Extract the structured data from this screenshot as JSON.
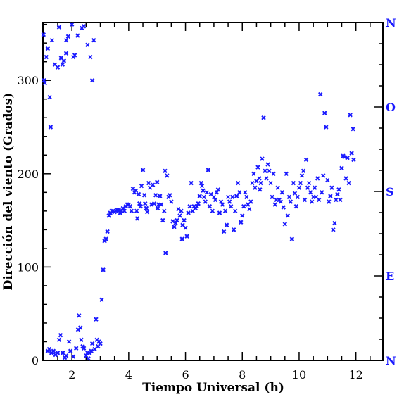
{
  "chart_data": {
    "type": "scatter",
    "xlabel": "Tiempo Universal (h)",
    "ylabel": "Dirección del viento (Grados)",
    "xlim": [
      0.98,
      12.95
    ],
    "ylim": [
      0,
      362
    ],
    "xticks": [
      {
        "value": 2,
        "label": "2"
      },
      {
        "value": 4,
        "label": "4"
      },
      {
        "value": 6,
        "label": "6"
      },
      {
        "value": 8,
        "label": "8"
      },
      {
        "value": 10,
        "label": "10"
      },
      {
        "value": 12,
        "label": "12"
      }
    ],
    "yticks": [
      {
        "value": 0,
        "label": "0"
      },
      {
        "value": 100,
        "label": "100"
      },
      {
        "value": 200,
        "label": "200"
      },
      {
        "value": 300,
        "label": "300"
      }
    ],
    "compass_axis": [
      {
        "value": 0,
        "label": "N"
      },
      {
        "value": 90,
        "label": "E"
      },
      {
        "value": 180,
        "label": "S"
      },
      {
        "value": 270,
        "label": "O"
      },
      {
        "value": 360,
        "label": "N"
      }
    ],
    "marker": "x",
    "color": "#1a1aff",
    "series": [
      {
        "points": [
          [
            1.0,
            349
          ],
          [
            1.02,
            300
          ],
          [
            1.05,
            297
          ],
          [
            1.1,
            325
          ],
          [
            1.15,
            334
          ],
          [
            1.22,
            282
          ],
          [
            1.25,
            250
          ],
          [
            1.3,
            343
          ],
          [
            1.4,
            317
          ],
          [
            1.5,
            314
          ],
          [
            1.55,
            357
          ],
          [
            1.62,
            324
          ],
          [
            1.67,
            317
          ],
          [
            1.72,
            321
          ],
          [
            1.8,
            329
          ],
          [
            1.8,
            343
          ],
          [
            1.87,
            347
          ],
          [
            2.0,
            360
          ],
          [
            2.05,
            325
          ],
          [
            2.1,
            327
          ],
          [
            2.2,
            348
          ],
          [
            2.35,
            356
          ],
          [
            2.42,
            358
          ],
          [
            2.55,
            338
          ],
          [
            2.65,
            325
          ],
          [
            2.72,
            300
          ],
          [
            2.77,
            343
          ],
          [
            1.15,
            10
          ],
          [
            1.2,
            12
          ],
          [
            1.28,
            8
          ],
          [
            1.35,
            10
          ],
          [
            1.42,
            6
          ],
          [
            1.5,
            8
          ],
          [
            1.55,
            22
          ],
          [
            1.6,
            27
          ],
          [
            1.68,
            8
          ],
          [
            1.75,
            3
          ],
          [
            1.8,
            5
          ],
          [
            1.9,
            20
          ],
          [
            1.95,
            10
          ],
          [
            2.05,
            4
          ],
          [
            2.15,
            13
          ],
          [
            2.22,
            33
          ],
          [
            2.25,
            48
          ],
          [
            2.3,
            35
          ],
          [
            2.33,
            22
          ],
          [
            2.38,
            15
          ],
          [
            2.42,
            13
          ],
          [
            2.5,
            5
          ],
          [
            2.55,
            8
          ],
          [
            2.58,
            2
          ],
          [
            2.62,
            8
          ],
          [
            2.68,
            10
          ],
          [
            2.72,
            18
          ],
          [
            2.8,
            12
          ],
          [
            2.85,
            44
          ],
          [
            2.88,
            22
          ],
          [
            2.92,
            15
          ],
          [
            2.95,
            20
          ],
          [
            3.0,
            18
          ],
          [
            3.05,
            65
          ],
          [
            3.1,
            97
          ],
          [
            3.15,
            128
          ],
          [
            3.2,
            130
          ],
          [
            3.25,
            138
          ],
          [
            3.3,
            155
          ],
          [
            3.35,
            158
          ],
          [
            3.4,
            160
          ],
          [
            3.45,
            160
          ],
          [
            3.5,
            159
          ],
          [
            3.55,
            160
          ],
          [
            3.6,
            161
          ],
          [
            3.65,
            161
          ],
          [
            3.7,
            158
          ],
          [
            3.75,
            160
          ],
          [
            3.8,
            163
          ],
          [
            3.85,
            160
          ],
          [
            3.9,
            165
          ],
          [
            3.95,
            167
          ],
          [
            4.0,
            167
          ],
          [
            4.05,
            165
          ],
          [
            4.1,
            160
          ],
          [
            4.15,
            184
          ],
          [
            4.2,
            180
          ],
          [
            4.25,
            182
          ],
          [
            4.28,
            160
          ],
          [
            4.3,
            152
          ],
          [
            4.35,
            178
          ],
          [
            4.38,
            168
          ],
          [
            4.42,
            165
          ],
          [
            4.45,
            187
          ],
          [
            4.5,
            204
          ],
          [
            4.55,
            177
          ],
          [
            4.58,
            168
          ],
          [
            4.62,
            163
          ],
          [
            4.65,
            159
          ],
          [
            4.7,
            190
          ],
          [
            4.75,
            185
          ],
          [
            4.8,
            167
          ],
          [
            4.85,
            188
          ],
          [
            4.9,
            168
          ],
          [
            4.95,
            177
          ],
          [
            5.0,
            191
          ],
          [
            5.02,
            163
          ],
          [
            5.05,
            167
          ],
          [
            5.1,
            176
          ],
          [
            5.15,
            167
          ],
          [
            5.2,
            150
          ],
          [
            5.25,
            160
          ],
          [
            5.28,
            203
          ],
          [
            5.3,
            115
          ],
          [
            5.35,
            198
          ],
          [
            5.4,
            175
          ],
          [
            5.45,
            177
          ],
          [
            5.5,
            170
          ],
          [
            5.55,
            149
          ],
          [
            5.6,
            143
          ],
          [
            5.65,
            147
          ],
          [
            5.7,
            150
          ],
          [
            5.75,
            162
          ],
          [
            5.8,
            155
          ],
          [
            5.85,
            160
          ],
          [
            5.88,
            130
          ],
          [
            5.9,
            145
          ],
          [
            5.95,
            150
          ],
          [
            6.0,
            142
          ],
          [
            6.05,
            133
          ],
          [
            6.1,
            158
          ],
          [
            6.15,
            165
          ],
          [
            6.2,
            190
          ],
          [
            6.25,
            160
          ],
          [
            6.3,
            165
          ],
          [
            6.35,
            163
          ],
          [
            6.4,
            165
          ],
          [
            6.45,
            168
          ],
          [
            6.5,
            176
          ],
          [
            6.55,
            190
          ],
          [
            6.58,
            187
          ],
          [
            6.62,
            182
          ],
          [
            6.65,
            175
          ],
          [
            6.7,
            170
          ],
          [
            6.75,
            180
          ],
          [
            6.8,
            204
          ],
          [
            6.85,
            165
          ],
          [
            6.9,
            178
          ],
          [
            6.95,
            160
          ],
          [
            7.0,
            175
          ],
          [
            7.05,
            172
          ],
          [
            7.1,
            180
          ],
          [
            7.15,
            183
          ],
          [
            7.2,
            158
          ],
          [
            7.25,
            170
          ],
          [
            7.3,
            167
          ],
          [
            7.35,
            138
          ],
          [
            7.4,
            160
          ],
          [
            7.45,
            145
          ],
          [
            7.5,
            175
          ],
          [
            7.55,
            170
          ],
          [
            7.6,
            165
          ],
          [
            7.65,
            175
          ],
          [
            7.7,
            140
          ],
          [
            7.75,
            160
          ],
          [
            7.8,
            176
          ],
          [
            7.85,
            190
          ],
          [
            7.9,
            180
          ],
          [
            7.95,
            148
          ],
          [
            8.0,
            155
          ],
          [
            8.05,
            165
          ],
          [
            8.1,
            180
          ],
          [
            8.15,
            175
          ],
          [
            8.2,
            167
          ],
          [
            8.25,
            162
          ],
          [
            8.3,
            170
          ],
          [
            8.35,
            190
          ],
          [
            8.4,
            200
          ],
          [
            8.45,
            185
          ],
          [
            8.5,
            192
          ],
          [
            8.55,
            207
          ],
          [
            8.6,
            195
          ],
          [
            8.62,
            183
          ],
          [
            8.65,
            190
          ],
          [
            8.7,
            216
          ],
          [
            8.75,
            260
          ],
          [
            8.8,
            203
          ],
          [
            8.85,
            195
          ],
          [
            8.9,
            210
          ],
          [
            8.95,
            203
          ],
          [
            9.0,
            190
          ],
          [
            9.05,
            175
          ],
          [
            9.1,
            200
          ],
          [
            9.15,
            167
          ],
          [
            9.2,
            172
          ],
          [
            9.25,
            185
          ],
          [
            9.3,
            172
          ],
          [
            9.35,
            170
          ],
          [
            9.4,
            180
          ],
          [
            9.45,
            164
          ],
          [
            9.5,
            146
          ],
          [
            9.55,
            200
          ],
          [
            9.6,
            155
          ],
          [
            9.65,
            175
          ],
          [
            9.7,
            170
          ],
          [
            9.75,
            130
          ],
          [
            9.8,
            190
          ],
          [
            9.85,
            179
          ],
          [
            9.9,
            165
          ],
          [
            9.95,
            175
          ],
          [
            10.0,
            185
          ],
          [
            10.05,
            190
          ],
          [
            10.1,
            198
          ],
          [
            10.15,
            203
          ],
          [
            10.2,
            172
          ],
          [
            10.25,
            215
          ],
          [
            10.3,
            185
          ],
          [
            10.35,
            190
          ],
          [
            10.4,
            180
          ],
          [
            10.45,
            170
          ],
          [
            10.5,
            175
          ],
          [
            10.55,
            185
          ],
          [
            10.6,
            175
          ],
          [
            10.65,
            195
          ],
          [
            10.7,
            172
          ],
          [
            10.75,
            285
          ],
          [
            10.8,
            180
          ],
          [
            10.85,
            198
          ],
          [
            10.9,
            265
          ],
          [
            10.95,
            250
          ],
          [
            11.0,
            193
          ],
          [
            11.05,
            170
          ],
          [
            11.1,
            176
          ],
          [
            11.15,
            185
          ],
          [
            11.2,
            140
          ],
          [
            11.25,
            147
          ],
          [
            11.3,
            172
          ],
          [
            11.35,
            178
          ],
          [
            11.4,
            183
          ],
          [
            11.45,
            172
          ],
          [
            11.5,
            206
          ],
          [
            11.55,
            219
          ],
          [
            11.6,
            218
          ],
          [
            11.65,
            195
          ],
          [
            11.7,
            217
          ],
          [
            11.75,
            190
          ],
          [
            11.8,
            263
          ],
          [
            11.85,
            222
          ],
          [
            11.9,
            248
          ],
          [
            11.92,
            215
          ]
        ]
      }
    ]
  }
}
